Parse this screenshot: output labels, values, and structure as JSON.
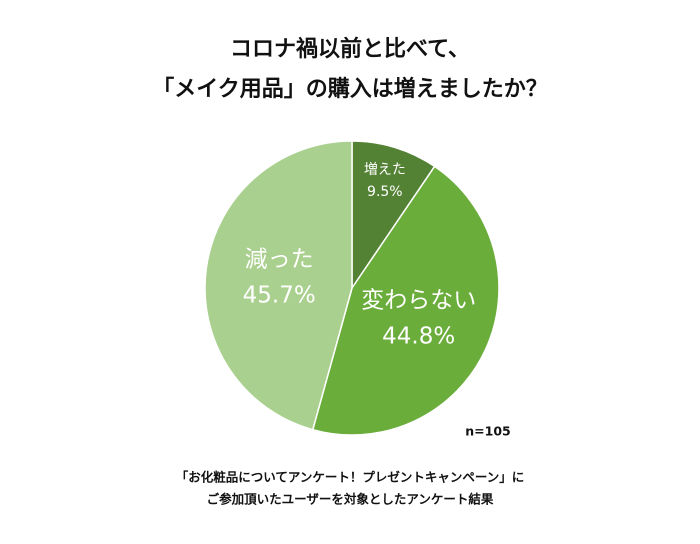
{
  "chart_data": {
    "type": "pie",
    "title": [
      "コロナ禍以前と比べて、",
      "「メイク用品」の購入は増えましたか？"
    ],
    "categories": [
      "増えた",
      "変わらない",
      "減った"
    ],
    "values": [
      9.5,
      44.8,
      45.7
    ],
    "value_labels": [
      "9.5%",
      "44.8%",
      "45.7%"
    ],
    "colors": [
      "#548235",
      "#6aad3b",
      "#a9d08e"
    ],
    "annotation": "n=105",
    "notes": [
      "「お化粧品についてアンケート！プレゼントキャンペーン」に",
      "ご参加頂いたユーザーを対象としたアンケート結果"
    ]
  }
}
